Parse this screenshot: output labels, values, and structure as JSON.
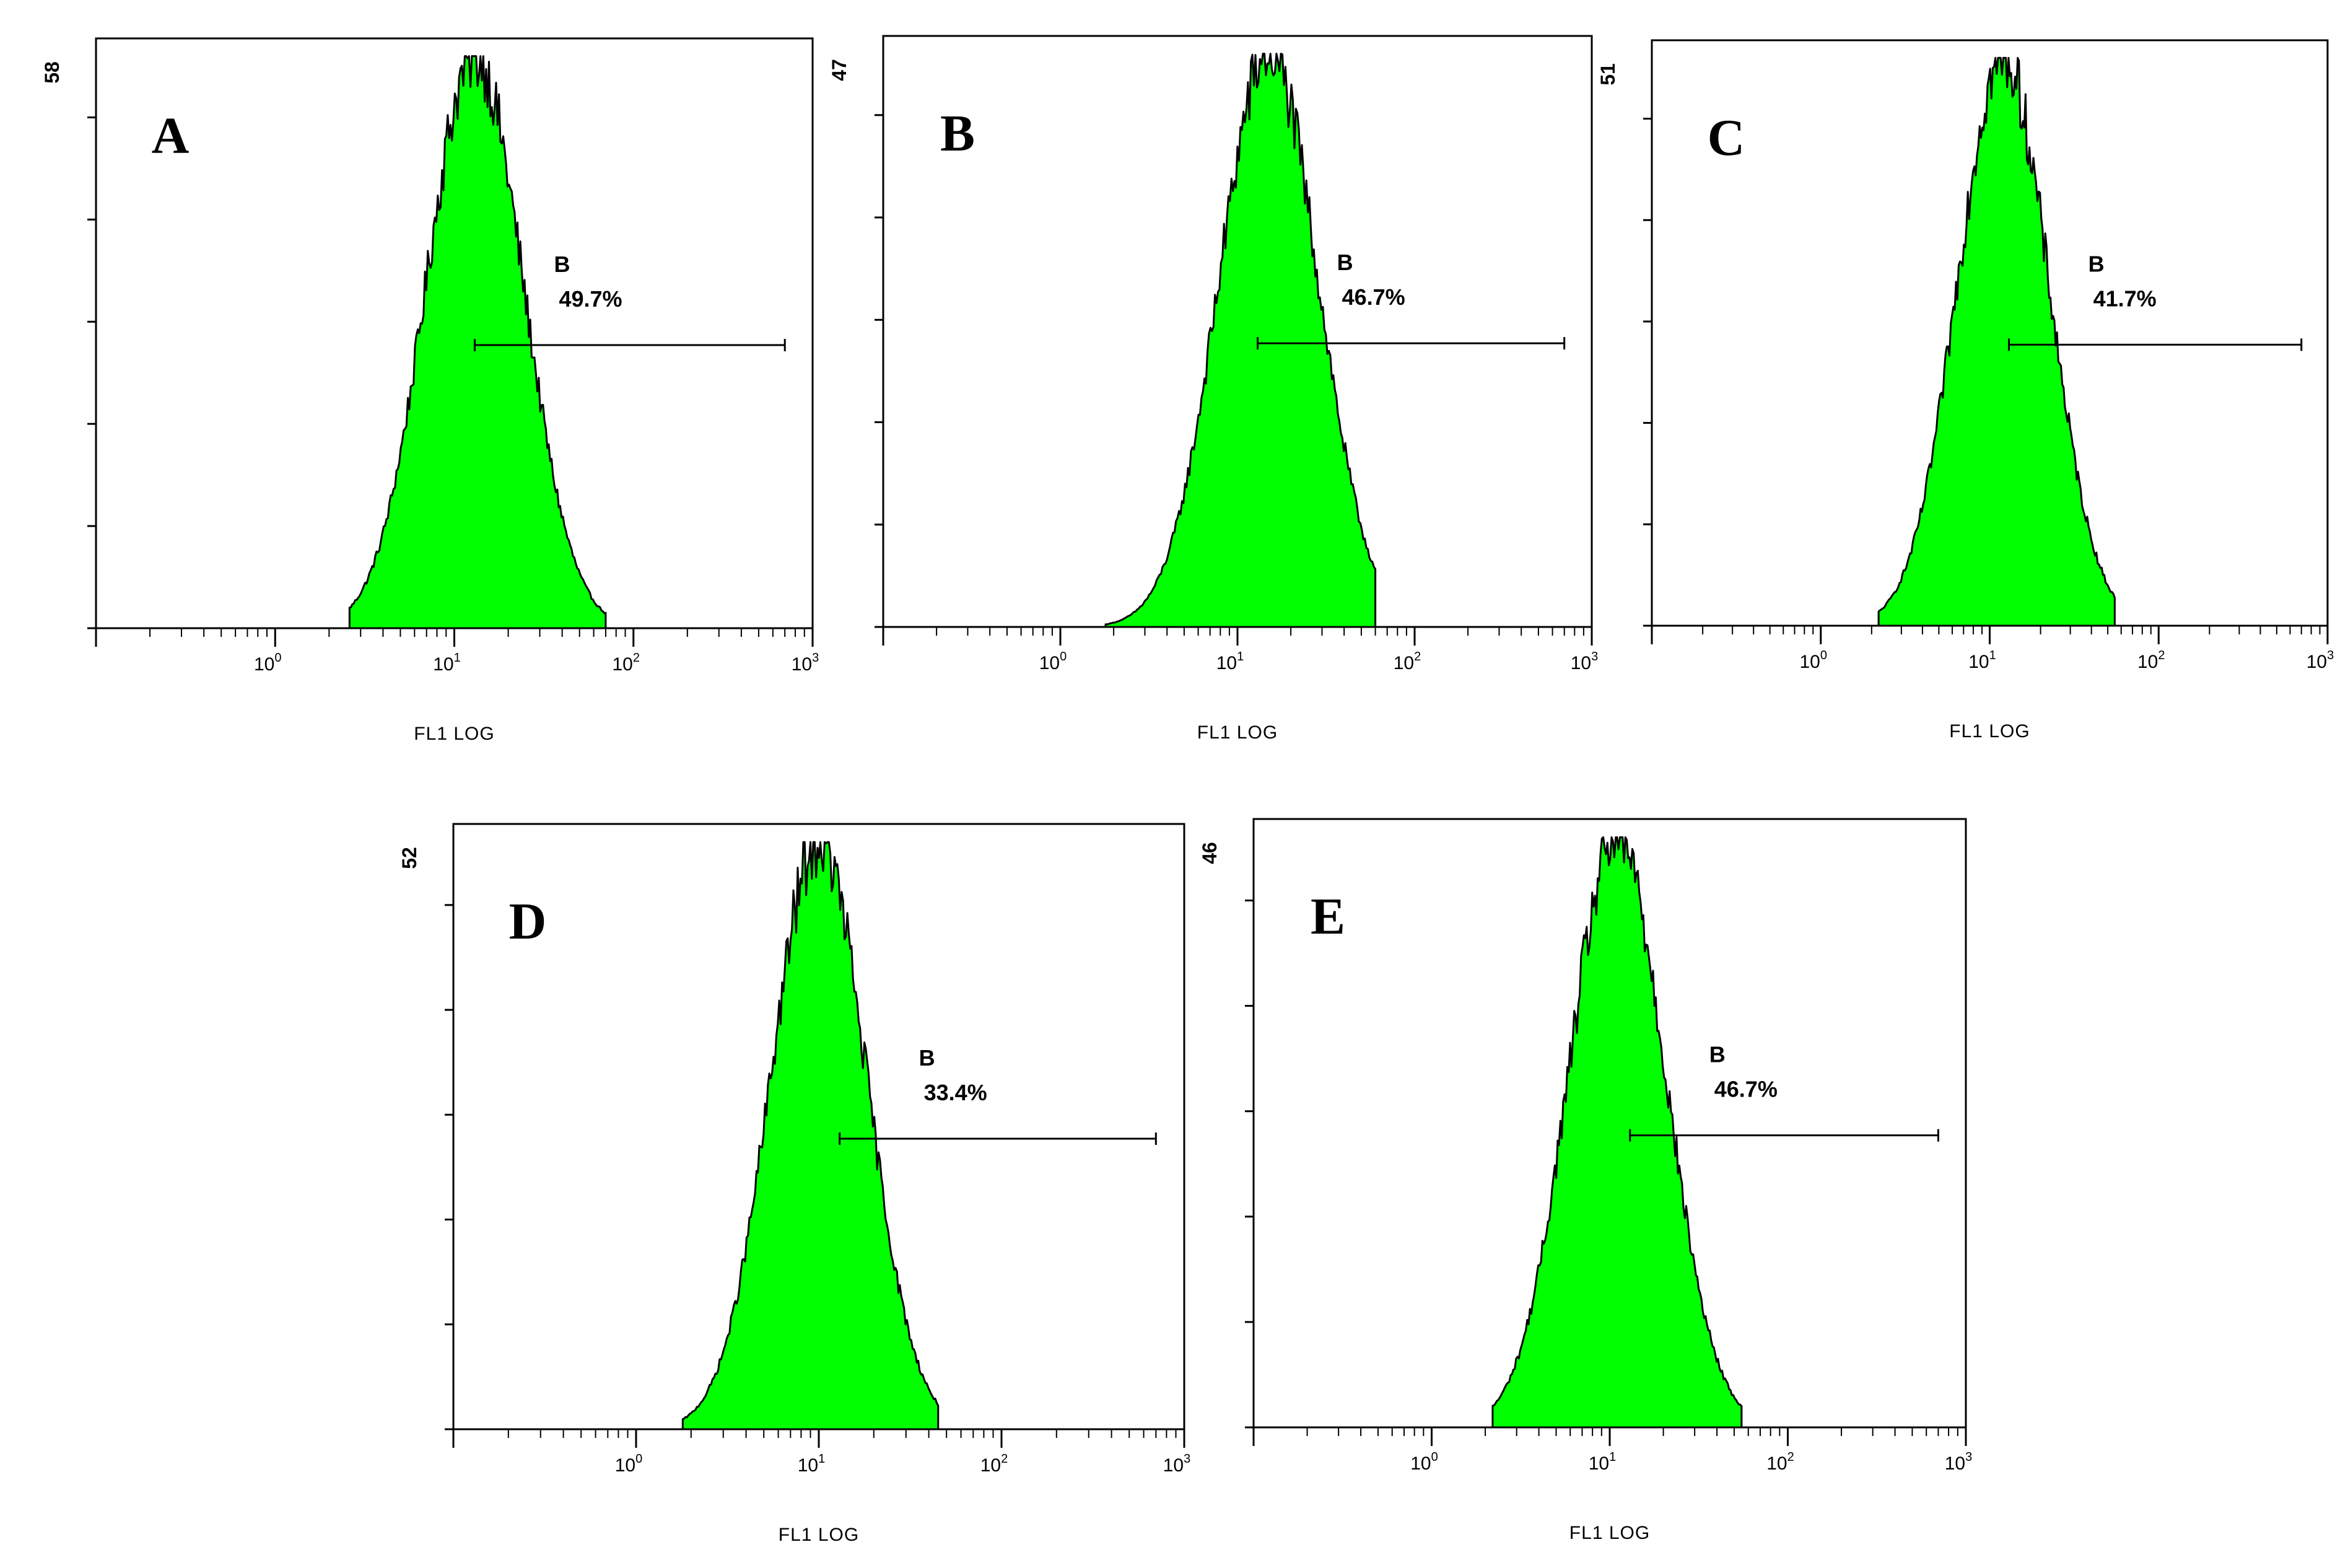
{
  "chart_data": [
    {
      "type": "histogram",
      "panel": "A",
      "ymax": "58",
      "xlabel": "FL1 LOG",
      "x_scale": "log",
      "xlim": [
        0.1,
        1000
      ],
      "x_ticks": [
        {
          "base": "10",
          "exp": "0"
        },
        {
          "base": "10",
          "exp": "1"
        },
        {
          "base": "10",
          "exp": "2"
        },
        {
          "base": "10",
          "exp": "3"
        }
      ],
      "peak_x": 13,
      "spread_decades": 0.27,
      "range": [
        2.6,
        70
      ],
      "fill_color": "#00ff00",
      "marker": {
        "name": "B",
        "percent": "49.7%",
        "from": 13,
        "to": 700
      }
    },
    {
      "type": "histogram",
      "panel": "B",
      "ymax": "47",
      "xlabel": "FL1 LOG",
      "x_scale": "log",
      "xlim": [
        0.1,
        1000
      ],
      "x_ticks": [
        {
          "base": "10",
          "exp": "0"
        },
        {
          "base": "10",
          "exp": "1"
        },
        {
          "base": "10",
          "exp": "2"
        },
        {
          "base": "10",
          "exp": "3"
        }
      ],
      "peak_x": 15,
      "spread_decades": 0.28,
      "range": [
        1.8,
        60
      ],
      "fill_color": "#00ff00",
      "marker": {
        "name": "B",
        "percent": "46.7%",
        "from": 13,
        "to": 700
      }
    },
    {
      "type": "histogram",
      "panel": "C",
      "ymax": "51",
      "xlabel": "FL1 LOG",
      "x_scale": "log",
      "xlim": [
        0.1,
        1000
      ],
      "x_ticks": [
        {
          "base": "10",
          "exp": "0"
        },
        {
          "base": "10",
          "exp": "1"
        },
        {
          "base": "10",
          "exp": "2"
        },
        {
          "base": "10",
          "exp": "3"
        }
      ],
      "peak_x": 12,
      "spread_decades": 0.27,
      "range": [
        2.2,
        55
      ],
      "fill_color": "#00ff00",
      "marker": {
        "name": "B",
        "percent": "41.7%",
        "from": 13,
        "to": 700
      }
    },
    {
      "type": "histogram",
      "panel": "D",
      "ymax": "52",
      "xlabel": "FL1 LOG",
      "x_scale": "log",
      "xlim": [
        0.1,
        1000
      ],
      "x_ticks": [
        {
          "base": "10",
          "exp": "0"
        },
        {
          "base": "10",
          "exp": "1"
        },
        {
          "base": "10",
          "exp": "2"
        },
        {
          "base": "10",
          "exp": "3"
        }
      ],
      "peak_x": 10,
      "spread_decades": 0.26,
      "range": [
        1.8,
        45
      ],
      "fill_color": "#00ff00",
      "marker": {
        "name": "B",
        "percent": "33.4%",
        "from": 13,
        "to": 700
      }
    },
    {
      "type": "histogram",
      "panel": "E",
      "ymax": "46",
      "xlabel": "FL1 LOG",
      "x_scale": "log",
      "xlim": [
        0.1,
        1000
      ],
      "x_ticks": [
        {
          "base": "10",
          "exp": "0"
        },
        {
          "base": "10",
          "exp": "1"
        },
        {
          "base": "10",
          "exp": "2"
        },
        {
          "base": "10",
          "exp": "3"
        }
      ],
      "peak_x": 11,
      "spread_decades": 0.27,
      "range": [
        2.2,
        55
      ],
      "fill_color": "#00ff00",
      "marker": {
        "name": "B",
        "percent": "46.7%",
        "from": 13,
        "to": 700
      }
    }
  ]
}
